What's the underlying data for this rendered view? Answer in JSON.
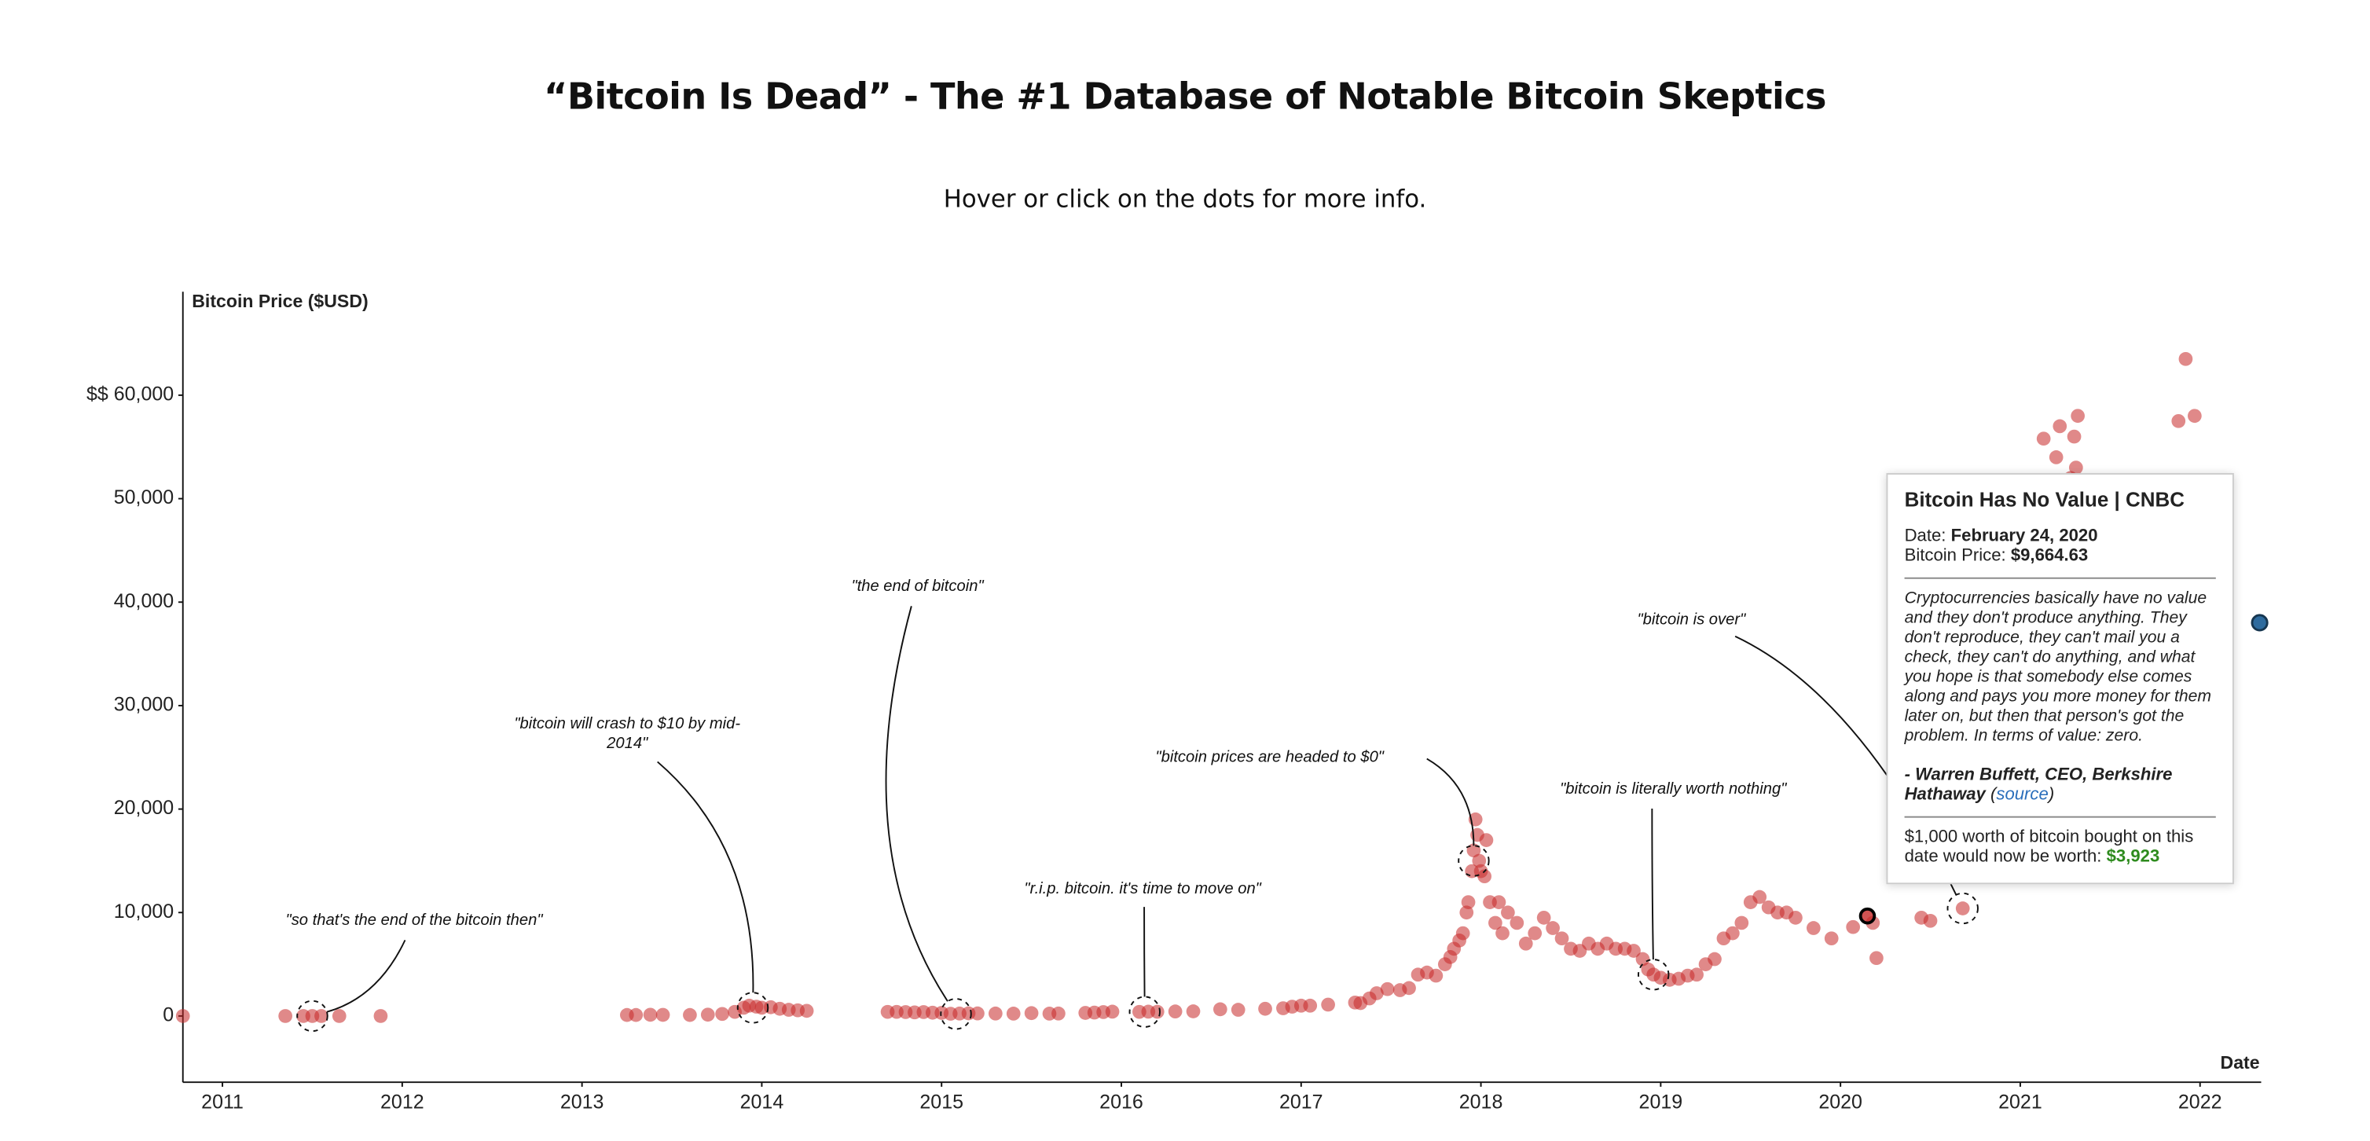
{
  "chart_data": {
    "type": "scatter",
    "title": "“Bitcoin Is Dead” - The #1 Database of Notable Bitcoin Skeptics",
    "subtitle": "Hover or click on the dots for more info.",
    "y_label": "Bitcoin Price ($USD)",
    "x_label": "Date",
    "xlim": [
      2010.78,
      2022.34
    ],
    "xticks": [
      2011,
      2012,
      2013,
      2014,
      2015,
      2016,
      2017,
      2018,
      2019,
      2020,
      2021,
      2022
    ],
    "ylim": [
      -6400,
      70000
    ],
    "yticks": [
      {
        "value": 60000,
        "label": "$$ 60,000"
      },
      {
        "value": 50000,
        "label": "50,000"
      },
      {
        "value": 40000,
        "label": "40,000"
      },
      {
        "value": 30000,
        "label": "30,000"
      },
      {
        "value": 20000,
        "label": "20,000"
      },
      {
        "value": 10000,
        "label": "10,000"
      },
      0
    ],
    "grid": false,
    "color": "#c62828",
    "x": [
      2010.78,
      2011.35,
      2011.45,
      2011.5,
      2011.55,
      2011.65,
      2011.88,
      2013.25,
      2013.3,
      2013.38,
      2013.45,
      2013.6,
      2013.7,
      2013.78,
      2013.85,
      2013.9,
      2013.93,
      2013.97,
      2014.0,
      2014.05,
      2014.1,
      2014.15,
      2014.2,
      2014.25,
      2014.7,
      2014.75,
      2014.8,
      2014.85,
      2014.9,
      2014.95,
      2015.0,
      2015.05,
      2015.1,
      2015.15,
      2015.2,
      2015.3,
      2015.4,
      2015.5,
      2015.6,
      2015.65,
      2015.8,
      2015.85,
      2015.9,
      2015.95,
      2016.1,
      2016.15,
      2016.2,
      2016.3,
      2016.4,
      2016.55,
      2016.65,
      2016.8,
      2016.9,
      2016.95,
      2017.0,
      2017.05,
      2017.15,
      2017.3,
      2017.33,
      2017.38,
      2017.42,
      2017.48,
      2017.55,
      2017.6,
      2017.65,
      2017.7,
      2017.75,
      2017.8,
      2017.83,
      2017.85,
      2017.88,
      2017.9,
      2017.92,
      2017.93,
      2017.95,
      2017.96,
      2017.97,
      2017.98,
      2017.99,
      2018.0,
      2018.02,
      2018.03,
      2018.05,
      2018.08,
      2018.1,
      2018.12,
      2018.15,
      2018.2,
      2018.25,
      2018.3,
      2018.35,
      2018.4,
      2018.45,
      2018.5,
      2018.55,
      2018.6,
      2018.65,
      2018.7,
      2018.75,
      2018.8,
      2018.85,
      2018.9,
      2018.93,
      2018.96,
      2019.0,
      2019.05,
      2019.1,
      2019.15,
      2019.2,
      2019.25,
      2019.3,
      2019.35,
      2019.4,
      2019.45,
      2019.5,
      2019.55,
      2019.6,
      2019.65,
      2019.7,
      2019.75,
      2019.85,
      2019.95,
      2020.07,
      2020.18,
      2020.2,
      2020.45,
      2020.5,
      2020.68,
      2021.13,
      2021.2,
      2021.22,
      2021.28,
      2021.3,
      2021.32,
      2021.31,
      2021.88,
      2021.92,
      2021.97
    ],
    "values": [
      0,
      0,
      0,
      0,
      0,
      0,
      0,
      100,
      100,
      120,
      110,
      100,
      130,
      200,
      400,
      800,
      1000,
      900,
      800,
      850,
      700,
      600,
      550,
      500,
      400,
      400,
      380,
      350,
      380,
      320,
      300,
      220,
      240,
      260,
      250,
      240,
      230,
      280,
      230,
      240,
      300,
      330,
      380,
      420,
      400,
      420,
      410,
      440,
      450,
      650,
      600,
      700,
      750,
      900,
      1000,
      1000,
      1100,
      1300,
      1250,
      1700,
      2200,
      2600,
      2500,
      2700,
      4000,
      4200,
      3900,
      5000,
      5700,
      6500,
      7300,
      8000,
      10000,
      11000,
      14000,
      16000,
      19000,
      17500,
      15000,
      14000,
      13500,
      17000,
      11000,
      9000,
      11000,
      8000,
      10000,
      9000,
      7000,
      8000,
      9500,
      8500,
      7500,
      6500,
      6300,
      7000,
      6500,
      7000,
      6500,
      6500,
      6300,
      5500,
      4500,
      4000,
      3700,
      3500,
      3600,
      3900,
      4000,
      5000,
      5500,
      7500,
      8000,
      9000,
      11000,
      11500,
      10500,
      10000,
      10000,
      9500,
      8500,
      7500,
      8600,
      9000,
      5600,
      9500,
      9200,
      10400,
      55800,
      54000,
      57000,
      52000,
      56000,
      58000,
      53000,
      57500,
      63500,
      58000
    ],
    "selected_point": {
      "x": 2020.15,
      "y": 9664.63
    },
    "annotations": [
      {
        "text": "\"so that's the end of the bitcoin then\"",
        "x": 2011.5,
        "y": 0
      },
      {
        "text": "\"bitcoin will crash to $10 by mid-2014\"",
        "x": 2013.95,
        "y": 800
      },
      {
        "text": "\"the end of bitcoin\"",
        "x": 2015.08,
        "y": 200
      },
      {
        "text": "\"r.i.p. bitcoin. it's time to move on\"",
        "x": 2016.13,
        "y": 400
      },
      {
        "text": "\"bitcoin prices are headed to $0\"",
        "x": 2017.96,
        "y": 15000
      },
      {
        "text": "\"bitcoin is literally worth nothing\"",
        "x": 2018.96,
        "y": 4000
      },
      {
        "text": "\"bitcoin is over\"",
        "x": 2020.68,
        "y": 10400
      }
    ]
  },
  "tooltip": {
    "title": "Bitcoin Has No Value | CNBC",
    "date_label": "Date:",
    "date": "February 24, 2020",
    "price_label": "Bitcoin Price:",
    "price": "$9,664.63",
    "quote": "Cryptocurrencies basically have no value and they don't produce anything. They don't reproduce, they can't mail you a check, they can't do anything, and what you hope is that somebody else comes along and pays you more money for them later on, but then that person's got the problem. In terms of value: zero.",
    "author": "- Warren Buffett, CEO, Berkshire Hathaway",
    "link": "source",
    "worth_label": "$1,000 worth of bitcoin bought on this date would now be worth:",
    "worth": "$3,923"
  }
}
